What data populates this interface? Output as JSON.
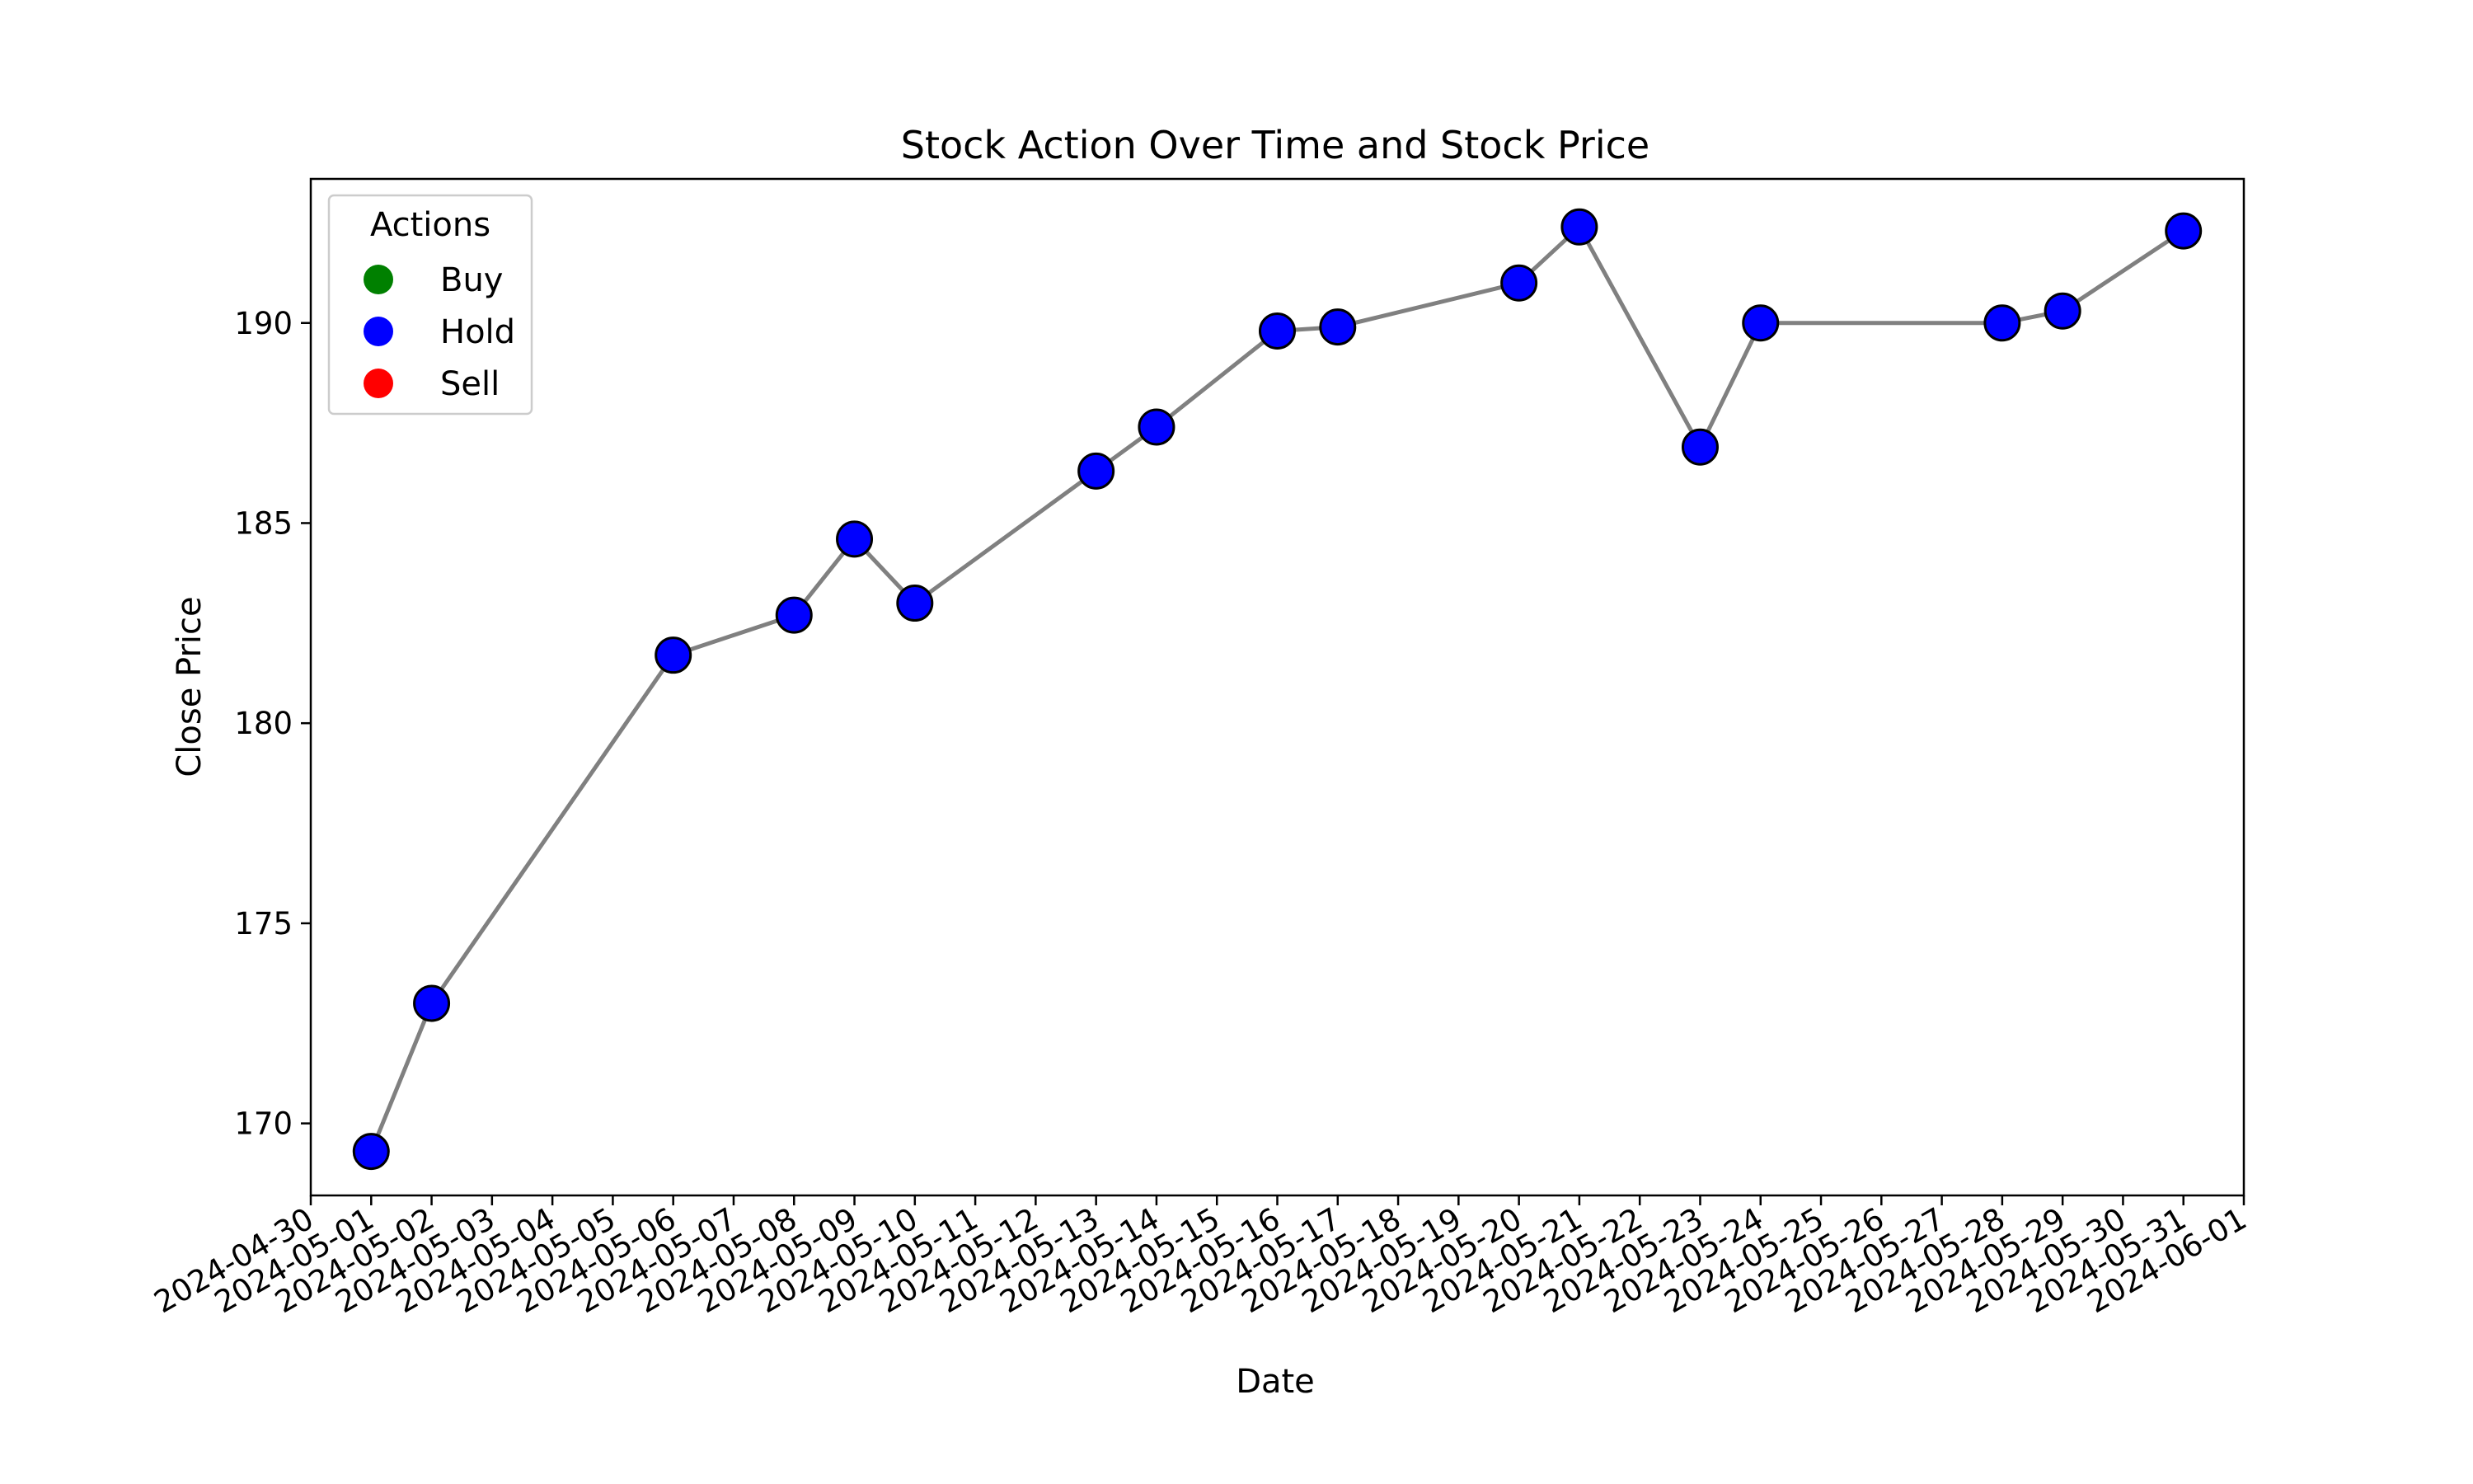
{
  "chart_data": {
    "type": "line",
    "title": "Stock Action Over Time and Stock Price",
    "xlabel": "Date",
    "ylabel": "Close Price",
    "xlim": [
      "2024-04-30",
      "2024-06-01"
    ],
    "ylim": [
      168.2,
      193.6
    ],
    "x_ticks": [
      "2024-04-30",
      "2024-05-01",
      "2024-05-02",
      "2024-05-03",
      "2024-05-04",
      "2024-05-05",
      "2024-05-06",
      "2024-05-07",
      "2024-05-08",
      "2024-05-09",
      "2024-05-10",
      "2024-05-11",
      "2024-05-12",
      "2024-05-13",
      "2024-05-14",
      "2024-05-15",
      "2024-05-16",
      "2024-05-17",
      "2024-05-18",
      "2024-05-19",
      "2024-05-20",
      "2024-05-21",
      "2024-05-22",
      "2024-05-23",
      "2024-05-24",
      "2024-05-25",
      "2024-05-26",
      "2024-05-27",
      "2024-05-28",
      "2024-05-29",
      "2024-05-30",
      "2024-05-31",
      "2024-06-01"
    ],
    "y_ticks": [
      170,
      175,
      180,
      185,
      190
    ],
    "grid": false,
    "legend": {
      "title": "Actions",
      "placement": "top-left",
      "entries": [
        {
          "label": "Buy",
          "color": "#008000"
        },
        {
          "label": "Hold",
          "color": "#0000ff"
        },
        {
          "label": "Sell",
          "color": "#ff0000"
        }
      ]
    },
    "line_color": "#808080",
    "marker_edge_color": "#000000",
    "points": [
      {
        "date": "2024-05-01",
        "close": 169.3,
        "action": "Hold"
      },
      {
        "date": "2024-05-02",
        "close": 173.0,
        "action": "Hold"
      },
      {
        "date": "2024-05-06",
        "close": 181.7,
        "action": "Hold"
      },
      {
        "date": "2024-05-08",
        "close": 182.7,
        "action": "Hold"
      },
      {
        "date": "2024-05-09",
        "close": 184.6,
        "action": "Hold"
      },
      {
        "date": "2024-05-10",
        "close": 183.0,
        "action": "Hold"
      },
      {
        "date": "2024-05-13",
        "close": 186.3,
        "action": "Hold"
      },
      {
        "date": "2024-05-14",
        "close": 187.4,
        "action": "Hold"
      },
      {
        "date": "2024-05-16",
        "close": 189.8,
        "action": "Hold"
      },
      {
        "date": "2024-05-17",
        "close": 189.9,
        "action": "Hold"
      },
      {
        "date": "2024-05-20",
        "close": 191.0,
        "action": "Hold"
      },
      {
        "date": "2024-05-21",
        "close": 192.4,
        "action": "Hold"
      },
      {
        "date": "2024-05-23",
        "close": 186.9,
        "action": "Hold"
      },
      {
        "date": "2024-05-24",
        "close": 190.0,
        "action": "Hold"
      },
      {
        "date": "2024-05-28",
        "close": 190.0,
        "action": "Hold"
      },
      {
        "date": "2024-05-29",
        "close": 190.3,
        "action": "Hold"
      },
      {
        "date": "2024-05-31",
        "close": 192.3,
        "action": "Hold"
      }
    ]
  }
}
